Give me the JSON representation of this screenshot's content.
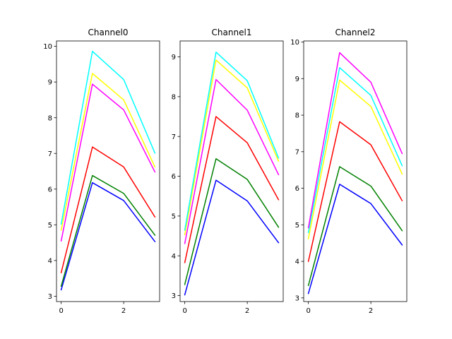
{
  "chart_data": [
    {
      "type": "line",
      "title": "Channel0",
      "x": [
        0,
        1,
        2,
        3
      ],
      "xticks": [
        "0",
        "2"
      ],
      "yticks": [
        "3",
        "4",
        "5",
        "6",
        "7",
        "8",
        "9",
        "10"
      ],
      "ylim": [
        2.85,
        10.15
      ],
      "xlim": [
        -0.15,
        3.15
      ],
      "grid": false,
      "series": [
        {
          "color": "#0000ff",
          "values": [
            3.18,
            6.18,
            5.68,
            4.53
          ]
        },
        {
          "color": "#008000",
          "values": [
            3.28,
            6.38,
            5.88,
            4.71
          ]
        },
        {
          "color": "#ff0000",
          "values": [
            3.66,
            7.18,
            6.62,
            5.22
          ]
        },
        {
          "color": "#ff00ff",
          "values": [
            4.55,
            8.94,
            8.22,
            6.48
          ]
        },
        {
          "color": "#ffff00",
          "values": [
            4.85,
            9.24,
            8.5,
            6.62
          ]
        },
        {
          "color": "#00ffff",
          "values": [
            5.02,
            9.86,
            9.07,
            7.01
          ]
        }
      ]
    },
    {
      "type": "line",
      "title": "Channel1",
      "x": [
        0,
        1,
        2,
        3
      ],
      "xticks": [
        "0",
        "2"
      ],
      "yticks": [
        "3",
        "4",
        "5",
        "6",
        "7",
        "8",
        "9"
      ],
      "ylim": [
        2.85,
        9.4
      ],
      "xlim": [
        -0.15,
        3.15
      ],
      "grid": false,
      "series": [
        {
          "color": "#0000ff",
          "values": [
            3.02,
            5.9,
            5.38,
            4.33
          ]
        },
        {
          "color": "#008000",
          "values": [
            3.28,
            6.44,
            5.92,
            4.72
          ]
        },
        {
          "color": "#ff0000",
          "values": [
            3.83,
            7.5,
            6.84,
            5.41
          ]
        },
        {
          "color": "#ff00ff",
          "values": [
            4.31,
            8.43,
            7.66,
            6.04
          ]
        },
        {
          "color": "#ffff00",
          "values": [
            4.53,
            8.92,
            8.22,
            6.38
          ]
        },
        {
          "color": "#00ffff",
          "values": [
            4.65,
            9.12,
            8.4,
            6.46
          ]
        }
      ]
    },
    {
      "type": "line",
      "title": "Channel2",
      "x": [
        0,
        1,
        2,
        3
      ],
      "xticks": [
        "0",
        "2"
      ],
      "yticks": [
        "3",
        "4",
        "5",
        "6",
        "7",
        "8",
        "9",
        "10"
      ],
      "ylim": [
        2.9,
        10.03
      ],
      "xlim": [
        -0.15,
        3.15
      ],
      "grid": false,
      "series": [
        {
          "color": "#0000ff",
          "values": [
            3.12,
            6.11,
            5.58,
            4.45
          ]
        },
        {
          "color": "#008000",
          "values": [
            3.34,
            6.59,
            6.06,
            4.84
          ]
        },
        {
          "color": "#ff0000",
          "values": [
            4.0,
            7.82,
            7.19,
            5.66
          ]
        },
        {
          "color": "#ffff00",
          "values": [
            4.62,
            8.96,
            8.24,
            6.39
          ]
        },
        {
          "color": "#00ffff",
          "values": [
            4.79,
            9.3,
            8.54,
            6.62
          ]
        },
        {
          "color": "#ff00ff",
          "values": [
            4.92,
            9.71,
            8.9,
            6.95
          ]
        }
      ]
    }
  ]
}
